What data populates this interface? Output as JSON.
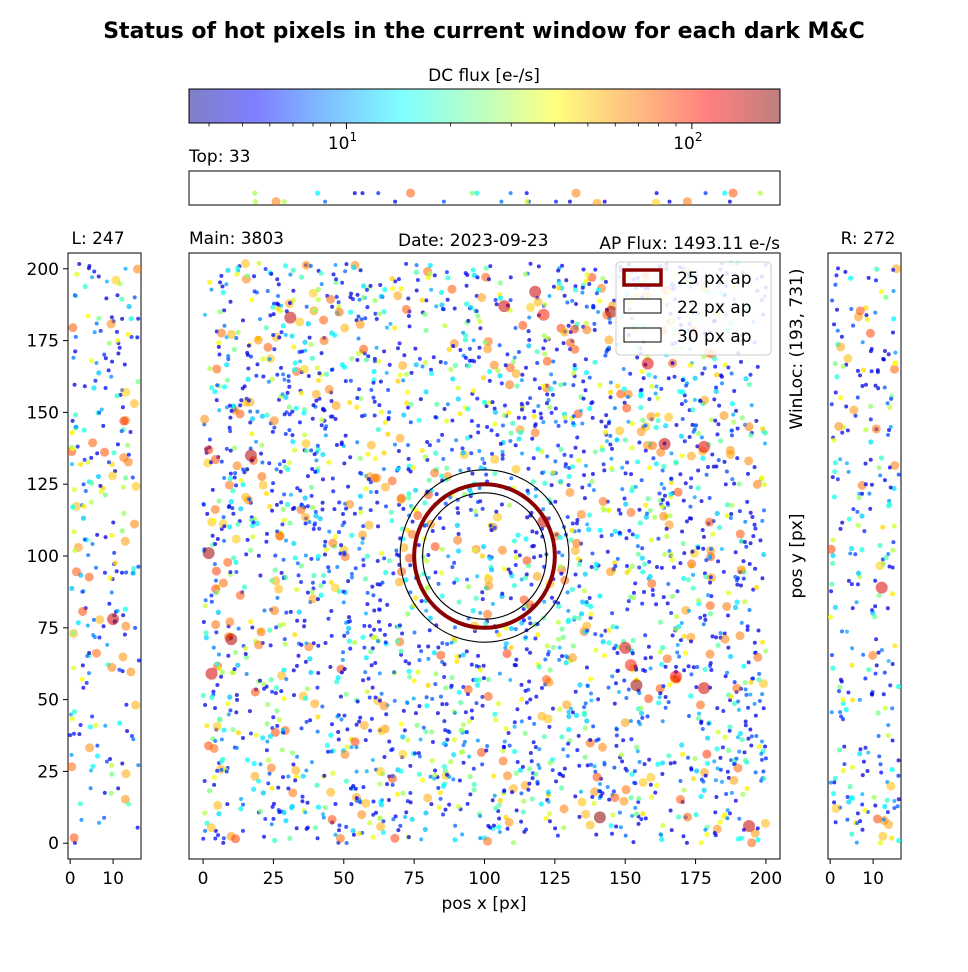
{
  "title": "Status of hot pixels in the current window for each dark M&C",
  "colorbar": {
    "label": "DC flux [e-/s]",
    "scale": "log",
    "range": [
      3.5,
      180
    ],
    "major_ticks": [
      {
        "value": 10,
        "base": "10",
        "exp": "1"
      },
      {
        "value": 100,
        "base": "10",
        "exp": "2"
      }
    ],
    "minor_ticks": [
      4,
      5,
      6,
      7,
      8,
      9,
      20,
      30,
      40,
      50,
      60,
      70,
      80,
      90
    ],
    "colormap": "jet",
    "alpha": 0.5
  },
  "panels": {
    "top": {
      "label": "Top: 33",
      "count": 33
    },
    "main": {
      "label": "Main: 3803",
      "count": 3803
    },
    "left": {
      "label": "L: 247",
      "count": 247
    },
    "right": {
      "label": "R: 272",
      "count": 272
    }
  },
  "date_label": "Date: 2023-09-23",
  "ap_flux_label": "AP Flux: 1493.11 e-/s",
  "winloc_label": "WinLoc: (193, 731)",
  "xlabel": "pos x [px]",
  "ylabel": "pos y [px]",
  "legend": {
    "placement": "top-right",
    "entries": [
      {
        "label": "25 px ap",
        "color": "#8b0000",
        "lw": 3.5
      },
      {
        "label": "22 px ap",
        "color": "#000000",
        "lw": 1
      },
      {
        "label": "30 px ap",
        "color": "#000000",
        "lw": 1
      }
    ]
  },
  "chart_data": {
    "type": "scatter",
    "main": {
      "x_ticks": [
        0,
        25,
        50,
        75,
        100,
        125,
        150,
        175,
        200
      ],
      "y_ticks": [
        0,
        25,
        50,
        75,
        100,
        125,
        150,
        175,
        200
      ],
      "xlim": [
        -5,
        205
      ],
      "ylim": [
        -5.5,
        205.5
      ],
      "apertures": [
        {
          "name": "25 px ap",
          "cx": 100,
          "cy": 100,
          "r": 25
        },
        {
          "name": "22 px ap",
          "cx": 100,
          "cy": 100,
          "r": 22
        },
        {
          "name": "30 px ap",
          "cx": 100,
          "cy": 100,
          "r": 30
        }
      ],
      "hot_points": [
        [
          31,
          183,
          140
        ],
        [
          43,
          175,
          75
        ],
        [
          99,
          190,
          60
        ],
        [
          107,
          187,
          130
        ],
        [
          118,
          192,
          135
        ],
        [
          121,
          184,
          100
        ],
        [
          132,
          179,
          90
        ],
        [
          145,
          185,
          160
        ],
        [
          158,
          167,
          125
        ],
        [
          164,
          139,
          140
        ],
        [
          178,
          138,
          120
        ],
        [
          194,
          145,
          70
        ],
        [
          2,
          137,
          90
        ],
        [
          17,
          135,
          150
        ],
        [
          2,
          101,
          160
        ],
        [
          10,
          71,
          150
        ],
        [
          3,
          59,
          130
        ],
        [
          70,
          141,
          60
        ],
        [
          121,
          112,
          130
        ],
        [
          108,
          66,
          90
        ],
        [
          122,
          57,
          80
        ],
        [
          150,
          68,
          125
        ],
        [
          152,
          62,
          100
        ],
        [
          154,
          55,
          165
        ],
        [
          168,
          58,
          110
        ],
        [
          178,
          54,
          130
        ],
        [
          179,
          31,
          90
        ],
        [
          150,
          42,
          60
        ],
        [
          141,
          9,
          175
        ],
        [
          194,
          6,
          140
        ],
        [
          101,
          93,
          45
        ],
        [
          63,
          25,
          50
        ],
        [
          78,
          22,
          40
        ],
        [
          71,
          31,
          50
        ],
        [
          36,
          165,
          50
        ]
      ],
      "bg_count": 3000,
      "bg_seed": 7
    },
    "left": {
      "x_ticks": [
        0,
        10
      ],
      "xlim": [
        -0.5,
        16.5
      ],
      "ylim": [
        -5.5,
        205.5
      ],
      "hot_points": [
        [
          12.5,
          147,
          90
        ],
        [
          10,
          78,
          130
        ],
        [
          5,
          168,
          40
        ],
        [
          13,
          157,
          50
        ],
        [
          11,
          175,
          40
        ]
      ],
      "bg_count": 240,
      "bg_seed": 11
    },
    "right": {
      "x_ticks": [
        0,
        10
      ],
      "xlim": [
        -0.5,
        16.5
      ],
      "ylim": [
        -5.5,
        205.5
      ],
      "hot_points": [
        [
          12,
          89,
          125
        ],
        [
          15,
          167,
          40
        ],
        [
          3,
          166,
          30
        ],
        [
          12,
          192,
          40
        ],
        [
          3,
          50,
          40
        ]
      ],
      "bg_count": 265,
      "bg_seed": 23
    },
    "top": {
      "xlim": [
        -5,
        205
      ],
      "ylim": [
        0,
        1
      ],
      "hot_points": [
        [
          140,
          0.05,
          60
        ],
        [
          161,
          0.05,
          50
        ],
        [
          198,
          0.35,
          30
        ]
      ],
      "points_y": [
        0.35,
        0.1
      ],
      "bg_count": 30,
      "bg_seed": 31
    }
  }
}
